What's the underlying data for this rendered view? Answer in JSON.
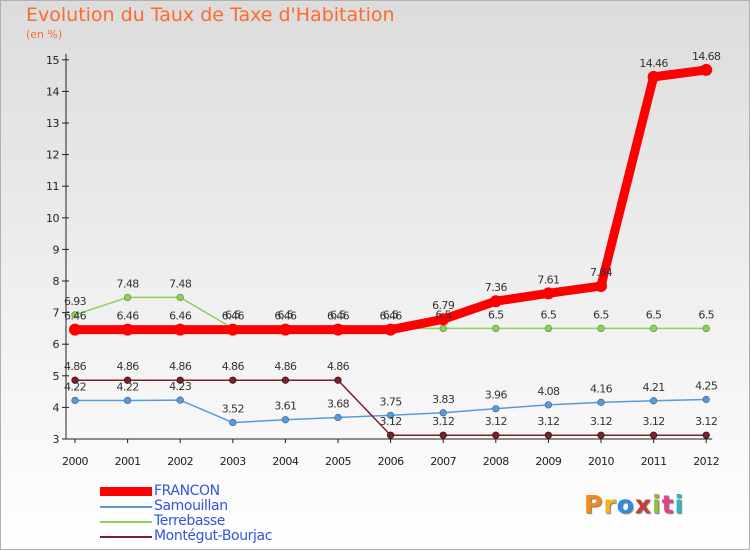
{
  "chart_data": {
    "type": "line",
    "title": "Evolution du Taux de Taxe d'Habitation",
    "unit": "(en %)",
    "x": [
      "2000",
      "2001",
      "2002",
      "2003",
      "2004",
      "2005",
      "2006",
      "2007",
      "2008",
      "2009",
      "2010",
      "2011",
      "2012"
    ],
    "ylim": [
      3,
      15
    ],
    "yticks": [
      "3",
      "4",
      "5",
      "6",
      "7",
      "8",
      "9",
      "10",
      "11",
      "12",
      "13",
      "14",
      "15"
    ],
    "grid": false,
    "legend_position": "bottom-left",
    "series": [
      {
        "name": "Terrebasse",
        "color": "#8ed15a",
        "values": [
          6.93,
          7.48,
          7.48,
          6.5,
          6.5,
          6.5,
          6.5,
          6.5,
          6.5,
          6.5,
          6.5,
          6.5,
          6.5
        ],
        "labels": [
          "6.93",
          "7.48",
          "7.48",
          "6.5",
          "6.5",
          "6.5",
          "6.5",
          "6.5",
          "6.5",
          "6.5",
          "6.5",
          "6.5",
          "6.5"
        ]
      },
      {
        "name": "Samouillan",
        "color": "#5b9bd5",
        "values": [
          4.22,
          4.22,
          4.23,
          3.52,
          3.61,
          3.68,
          3.75,
          3.83,
          3.96,
          4.08,
          4.16,
          4.21,
          4.25
        ],
        "labels": [
          "4.22",
          "4.22",
          "4.23",
          "3.52",
          "3.61",
          "3.68",
          "3.75",
          "3.83",
          "3.96",
          "4.08",
          "4.16",
          "4.21",
          "4.25"
        ]
      },
      {
        "name": "Montégut-Bourjac",
        "color": "#7a1f2b",
        "values": [
          4.86,
          4.86,
          4.86,
          4.86,
          4.86,
          4.86,
          3.12,
          3.12,
          3.12,
          3.12,
          3.12,
          3.12,
          3.12
        ],
        "labels": [
          "4.86",
          "4.86",
          "4.86",
          "4.86",
          "4.86",
          "4.86",
          "3.12",
          "3.12",
          "3.12",
          "3.12",
          "3.12",
          "3.12",
          "3.12"
        ]
      },
      {
        "name": "FRANCON",
        "color": "#ff0000",
        "values": [
          6.46,
          6.46,
          6.46,
          6.46,
          6.46,
          6.46,
          6.46,
          6.79,
          7.36,
          7.61,
          7.84,
          14.46,
          14.68
        ],
        "labels": [
          "6.46",
          "6.46",
          "6.46",
          "6.46",
          "6.46",
          "6.46",
          "6.46",
          "6.79",
          "7.36",
          "7.61",
          "7.84",
          "14.46",
          "14.68"
        ]
      }
    ],
    "legend": [
      "FRANCON",
      "Samouillan",
      "Terrebasse",
      "Montégut-Bourjac"
    ]
  },
  "brand": {
    "text": "Proxiti",
    "letter_colors": [
      "#f28a1e",
      "#f2b51e",
      "#2f8de0",
      "#c83c3c",
      "#8fc23a",
      "#e0418c",
      "#2fb5c9"
    ]
  }
}
